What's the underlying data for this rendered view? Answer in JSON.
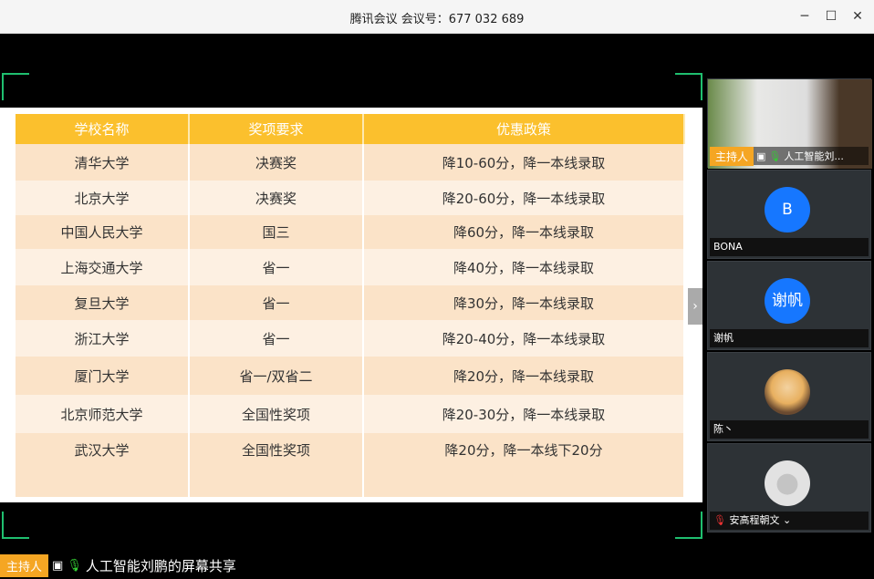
{
  "window": {
    "title": "腾讯会议 会议号：677 032 689",
    "minimize": "─",
    "maximize": "☐",
    "close": "✕"
  },
  "slide": {
    "headers": [
      "学校名称",
      "奖项要求",
      "优惠政策"
    ],
    "rows": [
      [
        "清华大学",
        "决赛奖",
        "降10-60分，降一本线录取"
      ],
      [
        "北京大学",
        "决赛奖",
        "降20-60分，降一本线录取"
      ],
      [
        "中国人民大学",
        "国三",
        "降60分，降一本线录取"
      ],
      [
        "上海交通大学",
        "省一",
        "降40分，降一本线录取"
      ],
      [
        "复旦大学",
        "省一",
        "降30分，降一本线录取"
      ],
      [
        "浙江大学",
        "省一",
        "降20-40分，降一本线录取"
      ],
      [
        "厦门大学",
        "省一/双省二",
        "降20分，降一本线录取"
      ],
      [
        "北京师范大学",
        "全国性奖项",
        "降20-30分，降一本线录取"
      ],
      [
        "武汉大学",
        "全国性奖项",
        "降20分，降一本线下20分"
      ]
    ],
    "next_arrow": "›"
  },
  "participants": [
    {
      "name": "人工智能刘...",
      "role": "主持人",
      "video": true
    },
    {
      "name": "BONA",
      "avatar": "B",
      "color": "#1677ff"
    },
    {
      "name": "谢帆",
      "avatar": "谢帆",
      "color": "#1677ff"
    },
    {
      "name": "陈丶",
      "avatar": "",
      "color": "#e0a060"
    },
    {
      "name": "安高程朝文",
      "avatar": "",
      "color": "#ddd",
      "muted": true
    }
  ],
  "bottom": {
    "role": "主持人",
    "label": "人工智能刘鹏的屏幕共享"
  },
  "colors": {
    "header": "#fbc02d",
    "host_badge": "#f5a623",
    "corner": "#1fbf6f"
  }
}
